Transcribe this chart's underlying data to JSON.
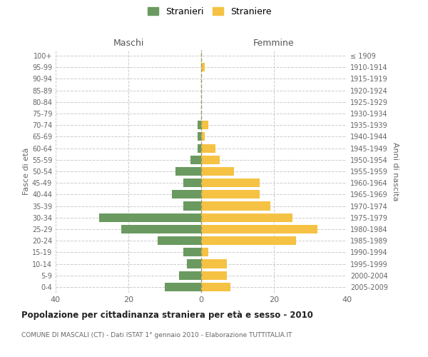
{
  "age_groups": [
    "0-4",
    "5-9",
    "10-14",
    "15-19",
    "20-24",
    "25-29",
    "30-34",
    "35-39",
    "40-44",
    "45-49",
    "50-54",
    "55-59",
    "60-64",
    "65-69",
    "70-74",
    "75-79",
    "80-84",
    "85-89",
    "90-94",
    "95-99",
    "100+"
  ],
  "birth_years": [
    "2005-2009",
    "2000-2004",
    "1995-1999",
    "1990-1994",
    "1985-1989",
    "1980-1984",
    "1975-1979",
    "1970-1974",
    "1965-1969",
    "1960-1964",
    "1955-1959",
    "1950-1954",
    "1945-1949",
    "1940-1944",
    "1935-1939",
    "1930-1934",
    "1925-1929",
    "1920-1924",
    "1915-1919",
    "1910-1914",
    "≤ 1909"
  ],
  "maschi": [
    10,
    6,
    4,
    5,
    12,
    22,
    28,
    5,
    8,
    5,
    7,
    3,
    1,
    1,
    1,
    0,
    0,
    0,
    0,
    0,
    0
  ],
  "femmine": [
    8,
    7,
    7,
    2,
    26,
    32,
    25,
    19,
    16,
    16,
    9,
    5,
    4,
    1,
    2,
    0,
    0,
    0,
    0,
    1,
    0
  ],
  "maschi_color": "#6a9a5f",
  "femmine_color": "#f5c243",
  "bg_color": "#ffffff",
  "grid_color": "#cccccc",
  "title": "Popolazione per cittadinanza straniera per età e sesso - 2010",
  "subtitle": "COMUNE DI MASCALI (CT) - Dati ISTAT 1° gennaio 2010 - Elaborazione TUTTITALIA.IT",
  "ylabel_left": "Fasce di età",
  "ylabel_right": "Anni di nascita",
  "xlabel_maschi": "Maschi",
  "xlabel_femmine": "Femmine",
  "xlim": 40,
  "legend_stranieri": "Stranieri",
  "legend_straniere": "Straniere"
}
